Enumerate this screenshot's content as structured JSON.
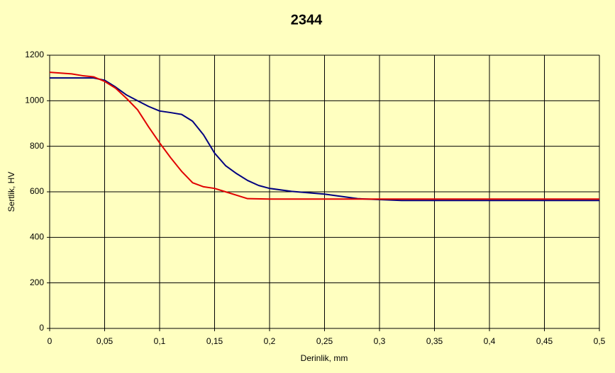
{
  "chart_data": {
    "type": "line",
    "title": "2344",
    "x_label": "Derinlik, mm",
    "y_label": "Sertlik, HV",
    "xlim": [
      0,
      0.5
    ],
    "ylim": [
      0,
      1200
    ],
    "xticks": [
      0,
      {
        "value": 0.05,
        "label": "0,05"
      },
      {
        "value": 0.1,
        "label": "0,1"
      },
      {
        "value": 0.15,
        "label": "0,15"
      },
      {
        "value": 0.2,
        "label": "0,2"
      },
      {
        "value": 0.25,
        "label": "0,25"
      },
      {
        "value": 0.3,
        "label": "0,3"
      },
      {
        "value": 0.35,
        "label": "0,35"
      },
      {
        "value": 0.4,
        "label": "0,4"
      },
      {
        "value": 0.45,
        "label": "0,45"
      },
      {
        "value": 0.5,
        "label": "0,5"
      }
    ],
    "yticks": [
      0,
      200,
      400,
      600,
      800,
      1000,
      1200
    ],
    "grid": true,
    "background": "#ffffc0",
    "series": [
      {
        "color": "#000080",
        "x": [
          0,
          0.02,
          0.04,
          0.05,
          0.06,
          0.07,
          0.08,
          0.09,
          0.1,
          0.11,
          0.12,
          0.13,
          0.14,
          0.15,
          0.16,
          0.17,
          0.18,
          0.19,
          0.2,
          0.22,
          0.25,
          0.28,
          0.32,
          0.4,
          0.5
        ],
        "values": [
          1100,
          1100,
          1100,
          1090,
          1060,
          1025,
          1000,
          975,
          955,
          948,
          940,
          910,
          850,
          770,
          715,
          680,
          650,
          628,
          615,
          602,
          590,
          570,
          562,
          562,
          562
        ]
      },
      {
        "color": "#e00000",
        "x": [
          0,
          0.02,
          0.03,
          0.04,
          0.05,
          0.06,
          0.07,
          0.08,
          0.09,
          0.1,
          0.11,
          0.12,
          0.13,
          0.14,
          0.15,
          0.16,
          0.17,
          0.18,
          0.2,
          0.3,
          0.4,
          0.5
        ],
        "values": [
          1125,
          1118,
          1110,
          1105,
          1085,
          1055,
          1010,
          960,
          885,
          815,
          750,
          690,
          640,
          622,
          615,
          600,
          585,
          570,
          568,
          568,
          568,
          568
        ]
      }
    ]
  }
}
